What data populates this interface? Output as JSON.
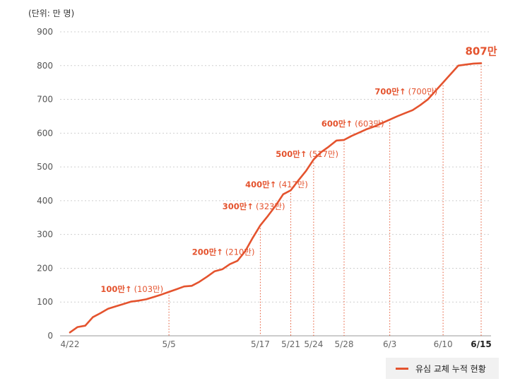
{
  "chart_data": {
    "type": "line",
    "unit_label": "(단위: 만 명)",
    "legend": [
      "유심 교체 누적 현황"
    ],
    "ylim": [
      0,
      900
    ],
    "y_ticks": [
      0,
      100,
      200,
      300,
      400,
      500,
      600,
      700,
      800,
      900
    ],
    "x_tick_labels": [
      "4/22",
      "5/5",
      "5/17",
      "5/21",
      "5/24",
      "5/28",
      "6/3",
      "6/10",
      "6/15"
    ],
    "color": "#e4532e",
    "series": [
      {
        "x": [
          "4/22",
          "4/23",
          "4/24",
          "4/25",
          "4/26",
          "4/27",
          "4/28",
          "4/29",
          "4/30",
          "5/1",
          "5/2",
          "5/3",
          "5/4",
          "5/5",
          "5/6",
          "5/7",
          "5/8",
          "5/9",
          "5/10",
          "5/11",
          "5/12",
          "5/13",
          "5/14",
          "5/15",
          "5/16",
          "5/17",
          "5/18",
          "5/19",
          "5/20",
          "5/21",
          "5/22",
          "5/23",
          "5/24",
          "5/25",
          "5/26",
          "5/27",
          "5/28",
          "5/29",
          "5/30",
          "5/31",
          "6/1",
          "6/2",
          "6/3",
          "6/4",
          "6/5",
          "6/6",
          "6/7",
          "6/8",
          "6/9",
          "6/10",
          "6/11",
          "6/12",
          "6/13",
          "6/14",
          "6/15"
        ],
        "values": [
          10,
          26,
          30,
          55,
          67,
          80,
          87,
          94,
          101,
          104,
          108,
          115,
          122,
          130,
          138,
          146,
          148,
          160,
          175,
          191,
          197,
          212,
          222,
          250,
          290,
          327,
          355,
          385,
          419,
          431,
          460,
          488,
          522,
          544,
          560,
          578,
          580,
          592,
          602,
          612,
          620,
          630,
          640,
          650,
          659,
          668,
          683,
          700,
          725,
          750,
          775,
          800,
          803,
          806,
          807
        ]
      }
    ],
    "annotations": [
      {
        "x": "5/5",
        "y": 130,
        "bold": "100만↑",
        "detail": "(103만)"
      },
      {
        "x": "5/17",
        "y": 240,
        "bold": "200만↑",
        "detail": "(210만)"
      },
      {
        "x": "5/21",
        "y": 375,
        "bold": "300만↑",
        "detail": "(323만)"
      },
      {
        "x": "5/24",
        "y": 440,
        "bold": "400만↑",
        "detail": "(417만)"
      },
      {
        "x": "5/28",
        "y": 530,
        "bold": "500만↑",
        "detail": "(517만)"
      },
      {
        "x": "6/3",
        "y": 620,
        "bold": "600만↑",
        "detail": "(603만)"
      },
      {
        "x": "6/10",
        "y": 715,
        "bold": "700만↑",
        "detail": "(700만)"
      }
    ],
    "final_label": {
      "x": "6/15",
      "y": 807,
      "text": "807만"
    }
  }
}
